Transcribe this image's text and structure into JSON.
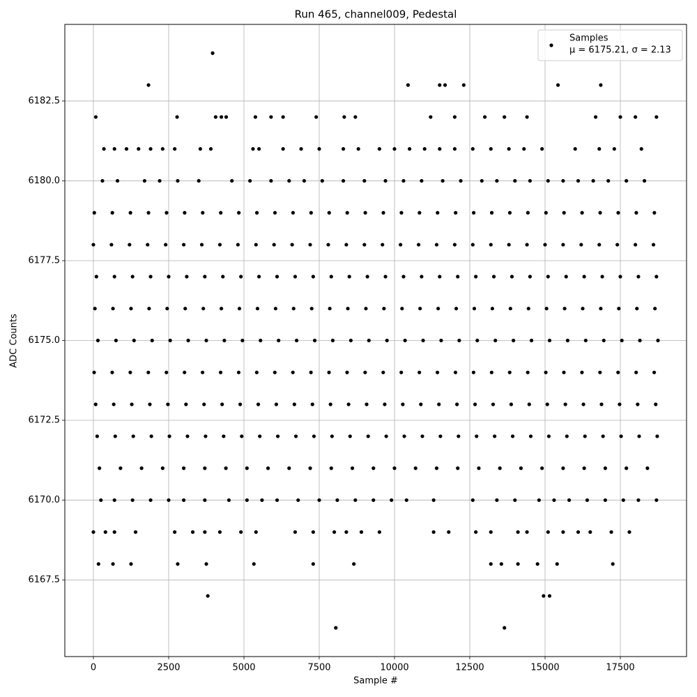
{
  "chart_data": {
    "type": "scatter",
    "title": "Run 465, channel009, Pedestal",
    "xlabel": "Sample #",
    "ylabel": "ADC Counts",
    "grid": true,
    "legend": "upper right",
    "xlim": [
      -949,
      19699
    ],
    "ylim": [
      6165.1,
      6184.9
    ],
    "xticks": [
      0,
      2500,
      5000,
      7500,
      10000,
      12500,
      15000,
      17500
    ],
    "yticks": [
      {
        "value": 6167.5,
        "label": "6167.5"
      },
      {
        "value": 6170,
        "label": "6170.0"
      },
      {
        "value": 6172.5,
        "label": "6172.5"
      },
      {
        "value": 6175,
        "label": "6175.0"
      },
      {
        "value": 6177.5,
        "label": "6177.5"
      },
      {
        "value": 6180,
        "label": "6180.0"
      },
      {
        "value": 6182.5,
        "label": "6182.5"
      }
    ],
    "series": [
      {
        "name": "Samples",
        "stats": "μ = 6175.21, σ = 2.13",
        "color": "#000000",
        "x": [
          3960,
          1830,
          10450,
          11500,
          11680,
          12300,
          15430,
          16850,
          80,
          2780,
          4060,
          4250,
          4410,
          5380,
          5900,
          6300,
          7400,
          8330,
          8700,
          11200,
          12000,
          13000,
          13650,
          14400,
          16680,
          17500,
          18000,
          18700,
          350,
          700,
          1100,
          1500,
          1900,
          2300,
          2700,
          3550,
          3900,
          5300,
          5500,
          6300,
          6900,
          7500,
          8300,
          8800,
          9500,
          10000,
          10500,
          11000,
          11500,
          12000,
          12600,
          13200,
          13800,
          14300,
          14900,
          16000,
          16800,
          17300,
          18200,
          300,
          800,
          1700,
          2200,
          2800,
          3500,
          4600,
          5200,
          5900,
          6500,
          7000,
          7600,
          8300,
          9000,
          9700,
          10300,
          10900,
          11600,
          12200,
          12900,
          13400,
          14000,
          14500,
          15100,
          15600,
          16100,
          16600,
          17100,
          17700,
          18300,
          30,
          630,
          1230,
          1830,
          2430,
          3030,
          3630,
          4230,
          4830,
          5430,
          6030,
          6630,
          7230,
          7830,
          8430,
          9030,
          9630,
          10230,
          10830,
          11430,
          12030,
          12630,
          13230,
          13830,
          14430,
          15030,
          15630,
          16230,
          16830,
          17430,
          18030,
          18630,
          0,
          600,
          1200,
          1800,
          2400,
          3000,
          3600,
          4200,
          4800,
          5400,
          6000,
          6600,
          7200,
          7800,
          8400,
          9000,
          9600,
          10200,
          10800,
          11400,
          12000,
          12600,
          13200,
          13800,
          14400,
          15000,
          15600,
          16200,
          16800,
          17400,
          18000,
          18600,
          100,
          700,
          1300,
          1900,
          2500,
          3100,
          3700,
          4300,
          4900,
          5500,
          6100,
          6700,
          7300,
          7900,
          8500,
          9100,
          9700,
          10300,
          10900,
          11500,
          12100,
          12700,
          13300,
          13900,
          14500,
          15100,
          15700,
          16300,
          16900,
          17500,
          18100,
          18700,
          50,
          650,
          1250,
          1850,
          2450,
          3050,
          3650,
          4250,
          4850,
          5450,
          6050,
          6650,
          7250,
          7850,
          8450,
          9050,
          9650,
          10250,
          10850,
          11450,
          12050,
          12650,
          13250,
          13850,
          14450,
          15050,
          15650,
          16250,
          16850,
          17450,
          18050,
          18650,
          150,
          750,
          1350,
          1950,
          2550,
          3150,
          3750,
          4350,
          4950,
          5550,
          6150,
          6750,
          7350,
          7950,
          8550,
          9150,
          9750,
          10350,
          10950,
          11550,
          12150,
          12750,
          13350,
          13950,
          14550,
          15150,
          15750,
          16350,
          16950,
          17550,
          18150,
          18750,
          25,
          625,
          1225,
          1825,
          2425,
          3025,
          3625,
          4225,
          4825,
          5425,
          6025,
          6625,
          7225,
          7825,
          8425,
          9025,
          9625,
          10225,
          10825,
          11425,
          12025,
          12625,
          13225,
          13825,
          14425,
          15025,
          15625,
          16225,
          16825,
          17425,
          18025,
          18625,
          75,
          675,
          1275,
          1875,
          2475,
          3075,
          3675,
          4275,
          4875,
          5475,
          6075,
          6675,
          7275,
          7875,
          8475,
          9075,
          9675,
          10275,
          10875,
          11475,
          12075,
          12675,
          13275,
          13875,
          14475,
          15075,
          15675,
          16275,
          16875,
          17475,
          18075,
          18675,
          125,
          725,
          1325,
          1925,
          2525,
          3125,
          3725,
          4325,
          4925,
          5525,
          6125,
          6725,
          7325,
          7925,
          8525,
          9125,
          9725,
          10325,
          10925,
          11525,
          12125,
          12725,
          13325,
          13925,
          14525,
          15125,
          15725,
          16325,
          16925,
          17525,
          18125,
          18725,
          200,
          900,
          1600,
          2300,
          3000,
          3700,
          4400,
          5100,
          5800,
          6500,
          7200,
          7900,
          8600,
          9300,
          10000,
          10700,
          11400,
          12100,
          12800,
          13500,
          14200,
          14900,
          15600,
          16300,
          17000,
          17700,
          18400,
          250,
          700,
          1300,
          1900,
          2500,
          3000,
          3700,
          4500,
          5100,
          5600,
          6100,
          6800,
          7500,
          8100,
          8700,
          9300,
          9900,
          10400,
          11300,
          12600,
          13400,
          14000,
          14800,
          15300,
          15800,
          16400,
          17000,
          17600,
          18100,
          18700,
          0,
          400,
          700,
          1400,
          2700,
          3300,
          3700,
          4200,
          4900,
          5400,
          6700,
          7300,
          8000,
          8400,
          8900,
          9500,
          11300,
          11800,
          12700,
          13200,
          14100,
          14400,
          15100,
          15600,
          16100,
          16500,
          17200,
          17800,
          170,
          650,
          1250,
          2800,
          3750,
          5330,
          7300,
          8650,
          13200,
          13550,
          14100,
          14750,
          15400,
          17250,
          3800,
          14950,
          15150,
          8050,
          13650
        ],
        "values": [
          6184,
          6183,
          6183,
          6183,
          6183,
          6183,
          6183,
          6183,
          6182,
          6182,
          6182,
          6182,
          6182,
          6182,
          6182,
          6182,
          6182,
          6182,
          6182,
          6182,
          6182,
          6182,
          6182,
          6182,
          6182,
          6182,
          6182,
          6182,
          6181,
          6181,
          6181,
          6181,
          6181,
          6181,
          6181,
          6181,
          6181,
          6181,
          6181,
          6181,
          6181,
          6181,
          6181,
          6181,
          6181,
          6181,
          6181,
          6181,
          6181,
          6181,
          6181,
          6181,
          6181,
          6181,
          6181,
          6181,
          6181,
          6181,
          6181,
          6180,
          6180,
          6180,
          6180,
          6180,
          6180,
          6180,
          6180,
          6180,
          6180,
          6180,
          6180,
          6180,
          6180,
          6180,
          6180,
          6180,
          6180,
          6180,
          6180,
          6180,
          6180,
          6180,
          6180,
          6180,
          6180,
          6180,
          6180,
          6180,
          6180,
          6179,
          6179,
          6179,
          6179,
          6179,
          6179,
          6179,
          6179,
          6179,
          6179,
          6179,
          6179,
          6179,
          6179,
          6179,
          6179,
          6179,
          6179,
          6179,
          6179,
          6179,
          6179,
          6179,
          6179,
          6179,
          6179,
          6179,
          6179,
          6179,
          6179,
          6179,
          6179,
          6178,
          6178,
          6178,
          6178,
          6178,
          6178,
          6178,
          6178,
          6178,
          6178,
          6178,
          6178,
          6178,
          6178,
          6178,
          6178,
          6178,
          6178,
          6178,
          6178,
          6178,
          6178,
          6178,
          6178,
          6178,
          6178,
          6178,
          6178,
          6178,
          6178,
          6178,
          6178,
          6177,
          6177,
          6177,
          6177,
          6177,
          6177,
          6177,
          6177,
          6177,
          6177,
          6177,
          6177,
          6177,
          6177,
          6177,
          6177,
          6177,
          6177,
          6177,
          6177,
          6177,
          6177,
          6177,
          6177,
          6177,
          6177,
          6177,
          6177,
          6177,
          6177,
          6177,
          6177,
          6176,
          6176,
          6176,
          6176,
          6176,
          6176,
          6176,
          6176,
          6176,
          6176,
          6176,
          6176,
          6176,
          6176,
          6176,
          6176,
          6176,
          6176,
          6176,
          6176,
          6176,
          6176,
          6176,
          6176,
          6176,
          6176,
          6176,
          6176,
          6176,
          6176,
          6176,
          6176,
          6175,
          6175,
          6175,
          6175,
          6175,
          6175,
          6175,
          6175,
          6175,
          6175,
          6175,
          6175,
          6175,
          6175,
          6175,
          6175,
          6175,
          6175,
          6175,
          6175,
          6175,
          6175,
          6175,
          6175,
          6175,
          6175,
          6175,
          6175,
          6175,
          6175,
          6175,
          6175,
          6174,
          6174,
          6174,
          6174,
          6174,
          6174,
          6174,
          6174,
          6174,
          6174,
          6174,
          6174,
          6174,
          6174,
          6174,
          6174,
          6174,
          6174,
          6174,
          6174,
          6174,
          6174,
          6174,
          6174,
          6174,
          6174,
          6174,
          6174,
          6174,
          6174,
          6174,
          6174,
          6173,
          6173,
          6173,
          6173,
          6173,
          6173,
          6173,
          6173,
          6173,
          6173,
          6173,
          6173,
          6173,
          6173,
          6173,
          6173,
          6173,
          6173,
          6173,
          6173,
          6173,
          6173,
          6173,
          6173,
          6173,
          6173,
          6173,
          6173,
          6173,
          6173,
          6173,
          6173,
          6172,
          6172,
          6172,
          6172,
          6172,
          6172,
          6172,
          6172,
          6172,
          6172,
          6172,
          6172,
          6172,
          6172,
          6172,
          6172,
          6172,
          6172,
          6172,
          6172,
          6172,
          6172,
          6172,
          6172,
          6172,
          6172,
          6172,
          6172,
          6172,
          6172,
          6172,
          6172,
          6171,
          6171,
          6171,
          6171,
          6171,
          6171,
          6171,
          6171,
          6171,
          6171,
          6171,
          6171,
          6171,
          6171,
          6171,
          6171,
          6171,
          6171,
          6171,
          6171,
          6171,
          6171,
          6171,
          6171,
          6171,
          6171,
          6171,
          6170,
          6170,
          6170,
          6170,
          6170,
          6170,
          6170,
          6170,
          6170,
          6170,
          6170,
          6170,
          6170,
          6170,
          6170,
          6170,
          6170,
          6170,
          6170,
          6170,
          6170,
          6170,
          6170,
          6170,
          6170,
          6170,
          6170,
          6170,
          6170,
          6170,
          6169,
          6169,
          6169,
          6169,
          6169,
          6169,
          6169,
          6169,
          6169,
          6169,
          6169,
          6169,
          6169,
          6169,
          6169,
          6169,
          6169,
          6169,
          6169,
          6169,
          6169,
          6169,
          6169,
          6169,
          6169,
          6169,
          6169,
          6169,
          6168,
          6168,
          6168,
          6168,
          6168,
          6168,
          6168,
          6168,
          6168,
          6168,
          6168,
          6168,
          6168,
          6168,
          6167,
          6167,
          6167,
          6166,
          6166
        ]
      }
    ]
  }
}
